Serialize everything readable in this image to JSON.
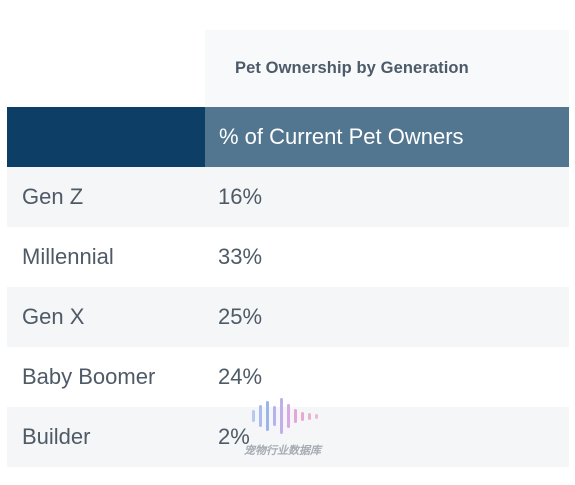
{
  "chart_data": {
    "type": "table",
    "title": "Pet Ownership by Generation",
    "columns": [
      "",
      "% of Current Pet Owners"
    ],
    "rows": [
      {
        "label": "Gen Z",
        "value": "16%"
      },
      {
        "label": "Millennial",
        "value": "33%"
      },
      {
        "label": "Gen X",
        "value": "25%"
      },
      {
        "label": "Baby Boomer",
        "value": "24%"
      },
      {
        "label": "Builder",
        "value": "2%"
      }
    ]
  },
  "watermark": {
    "text": "宠物行业数据库",
    "icon": "sound-wave-logo-icon"
  }
}
